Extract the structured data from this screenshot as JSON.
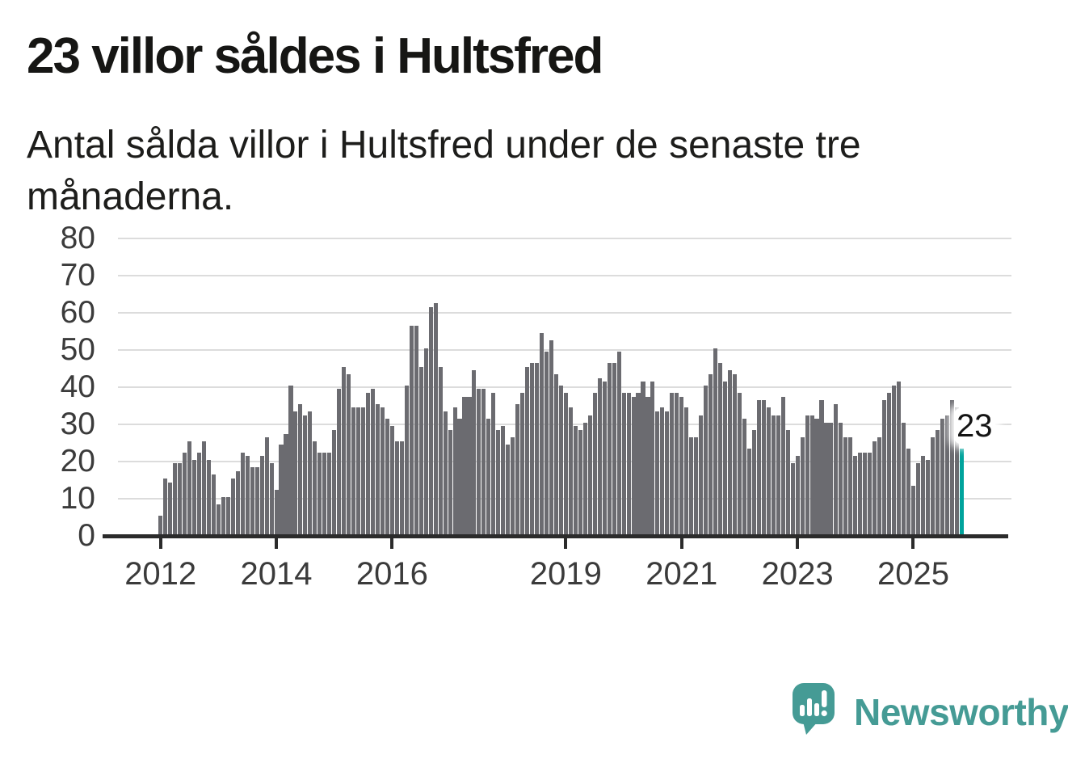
{
  "header": {
    "title": "23 villor såldes i Hultsfred",
    "subtitle": "Antal sålda villor i Hultsfred under de senaste tre månaderna.",
    "subtitle_lines": [
      "Antal sålda villor i Hultsfred under de senaste tre",
      "månaderna."
    ]
  },
  "chart_data": {
    "type": "bar",
    "title": "23 villor såldes i Hultsfred",
    "subtitle": "Antal sålda villor i Hultsfred under de senaste tre månaderna.",
    "frequency": "monthly",
    "start_period": "2012-01",
    "unit": "antal sålda villor (rullande tre månader)",
    "values": [
      5,
      15,
      14,
      19,
      19,
      22,
      25,
      20,
      22,
      25,
      20,
      16,
      8,
      10,
      10,
      15,
      17,
      22,
      21,
      18,
      18,
      21,
      26,
      19,
      12,
      24,
      27,
      40,
      33,
      35,
      32,
      33,
      25,
      22,
      22,
      22,
      28,
      39,
      45,
      43,
      34,
      34,
      34,
      38,
      39,
      35,
      34,
      31,
      29,
      25,
      25,
      40,
      56,
      56,
      45,
      50,
      61,
      62,
      45,
      33,
      28,
      34,
      31,
      37,
      37,
      44,
      39,
      39,
      31,
      38,
      28,
      29,
      24,
      26,
      35,
      38,
      45,
      46,
      46,
      54,
      49,
      52,
      43,
      40,
      38,
      34,
      29,
      28,
      30,
      32,
      38,
      42,
      41,
      46,
      46,
      49,
      38,
      38,
      37,
      38,
      41,
      37,
      41,
      33,
      34,
      33,
      38,
      38,
      37,
      34,
      26,
      26,
      32,
      40,
      43,
      50,
      46,
      41,
      44,
      43,
      38,
      31,
      23,
      28,
      36,
      36,
      34,
      32,
      32,
      37,
      28,
      19,
      21,
      26,
      32,
      32,
      31,
      36,
      30,
      30,
      35,
      30,
      26,
      26,
      21,
      22,
      22,
      22,
      25,
      26,
      36,
      38,
      40,
      41,
      30,
      23,
      13,
      19,
      21,
      20,
      26,
      28,
      31,
      32,
      36,
      34,
      23
    ],
    "highlight": {
      "index": 166,
      "value": 23,
      "label": "23",
      "color": "#00a39c"
    },
    "bar_color": "#6b6b70",
    "y_axis": {
      "ticks": [
        0,
        10,
        20,
        30,
        40,
        50,
        60,
        70,
        80
      ],
      "min": 0,
      "max": 80,
      "grid": true
    },
    "x_axis": {
      "tick_labels": [
        "2012",
        "2014",
        "2016",
        "2019",
        "2021",
        "2023",
        "2025"
      ],
      "tick_indices": [
        0,
        24,
        48,
        84,
        108,
        132,
        156
      ]
    },
    "legend": "none"
  },
  "annotation": {
    "last_value_label": "23"
  },
  "footer": {
    "brand": "Newsworthy",
    "brand_color": "#459b95",
    "logo_icon": "newsworthy-speech-bubble-bar-chart-icon"
  }
}
